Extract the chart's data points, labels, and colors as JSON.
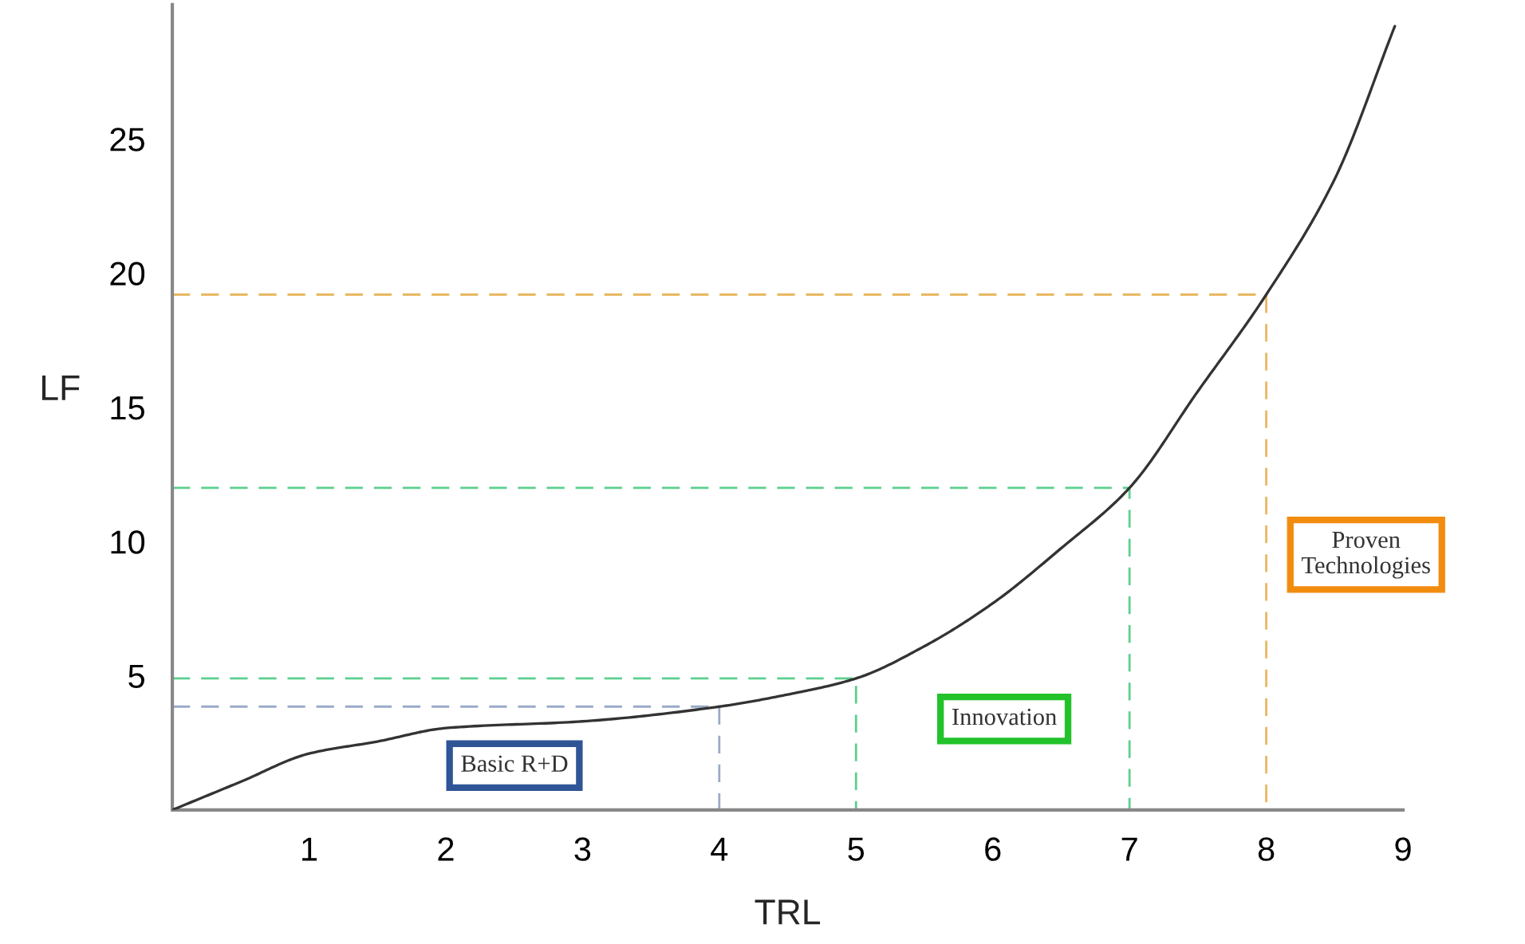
{
  "chart_data": {
    "type": "line",
    "xlabel": "TRL",
    "ylabel": "LF",
    "xlim": [
      0,
      9
    ],
    "ylim": [
      0,
      30
    ],
    "xticks": [
      1,
      2,
      3,
      4,
      5,
      6,
      7,
      8,
      9
    ],
    "yticks": [
      5,
      10,
      15,
      20,
      25
    ],
    "grid": false,
    "legend": false,
    "series": [
      {
        "color": "#333333",
        "line_style": "solid",
        "x": [
          0,
          0.5,
          1,
          1.5,
          2,
          3,
          4,
          4.5,
          5,
          5.5,
          6,
          6.5,
          7,
          7.5,
          8,
          8.5,
          8.94
        ],
        "values": [
          0,
          1.05,
          2.1,
          2.55,
          3.05,
          3.3,
          3.85,
          4.3,
          4.9,
          6.1,
          7.7,
          9.75,
          12,
          15.6,
          19.2,
          23.5,
          29.2
        ]
      },
      {
        "color": "#9aaac8",
        "line_style": "dashed",
        "x": [
          0,
          4,
          4
        ],
        "values": [
          3.85,
          3.85,
          0
        ]
      },
      {
        "color": "#5ccf8e",
        "line_style": "dashed",
        "x": [
          0,
          5,
          5
        ],
        "values": [
          4.9,
          4.9,
          0
        ]
      },
      {
        "color": "#5ccf8e",
        "line_style": "dashed",
        "x": [
          0,
          7,
          7
        ],
        "values": [
          12,
          12,
          0
        ]
      },
      {
        "color": "#e8b860",
        "line_style": "dashed",
        "x": [
          0,
          8,
          8
        ],
        "values": [
          19.2,
          19.2,
          0
        ]
      }
    ],
    "annotations": [
      "Basic R+D",
      "Innovation",
      "Proven\nTechnologies"
    ]
  }
}
